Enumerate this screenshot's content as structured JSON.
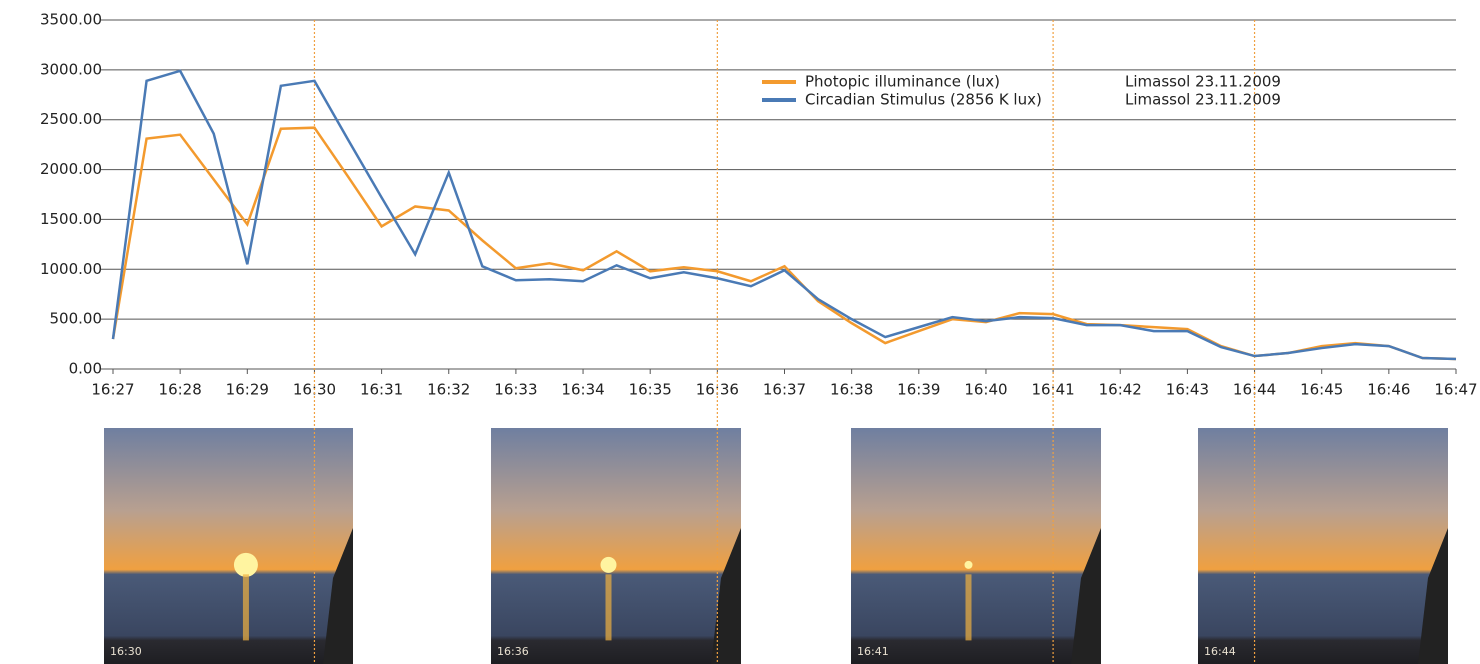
{
  "chart_data": {
    "type": "line",
    "categories": [
      "16:27",
      null,
      "16:28",
      null,
      "16:29",
      null,
      "16:30",
      null,
      "16:31",
      null,
      "16:32",
      null,
      "16:33",
      null,
      "16:34",
      null,
      "16:35",
      null,
      "16:36",
      null,
      "16:37",
      null,
      "16:38",
      null,
      "16:39",
      null,
      "16:40",
      null,
      "16:41",
      null,
      "16:42",
      null,
      "16:43",
      null,
      "16:44",
      null,
      "16:45",
      null,
      "16:46",
      null,
      "16:47"
    ],
    "series": [
      {
        "name": "Photopic illuminance (lux)",
        "note": "Limassol 23.11.2009",
        "color": "#f39a2e",
        "values": [
          300,
          2310,
          2350,
          1900,
          1450,
          2410,
          2420,
          1930,
          1430,
          1630,
          1590,
          1290,
          1010,
          1060,
          990,
          1180,
          980,
          1020,
          980,
          880,
          1030,
          680,
          460,
          260,
          380,
          500,
          470,
          560,
          550,
          450,
          440,
          420,
          400,
          230,
          130,
          160,
          230,
          260,
          230,
          110,
          100
        ]
      },
      {
        "name": "Circadian Stimulus (2856 K lux)",
        "note": "Limassol 23.11.2009",
        "color": "#4a7ab5",
        "values": [
          300,
          2890,
          2990,
          2360,
          1050,
          2840,
          2890,
          2300,
          1720,
          1150,
          1970,
          1030,
          890,
          900,
          880,
          1040,
          910,
          970,
          910,
          830,
          990,
          700,
          500,
          320,
          420,
          520,
          480,
          520,
          510,
          440,
          440,
          380,
          380,
          220,
          130,
          160,
          210,
          250,
          230,
          110,
          100
        ]
      }
    ],
    "ylim": [
      0,
      3500
    ],
    "yticks": [
      {
        "value": 0,
        "label": "0.00"
      },
      {
        "value": 500,
        "label": "500.00"
      },
      {
        "value": 1000,
        "label": "1000.00"
      },
      {
        "value": 1500,
        "label": "1500.00"
      },
      {
        "value": 2000,
        "label": "2000.00"
      },
      {
        "value": 2500,
        "label": "2500.00"
      },
      {
        "value": 3000,
        "label": "3000.00"
      },
      {
        "value": 3500,
        "label": "3500.00"
      }
    ],
    "grid": true,
    "marker_color": "#f0a040",
    "photos": [
      {
        "caption": "16:30"
      },
      {
        "caption": "16:36"
      },
      {
        "caption": "16:41"
      },
      {
        "caption": "16:44"
      }
    ]
  }
}
